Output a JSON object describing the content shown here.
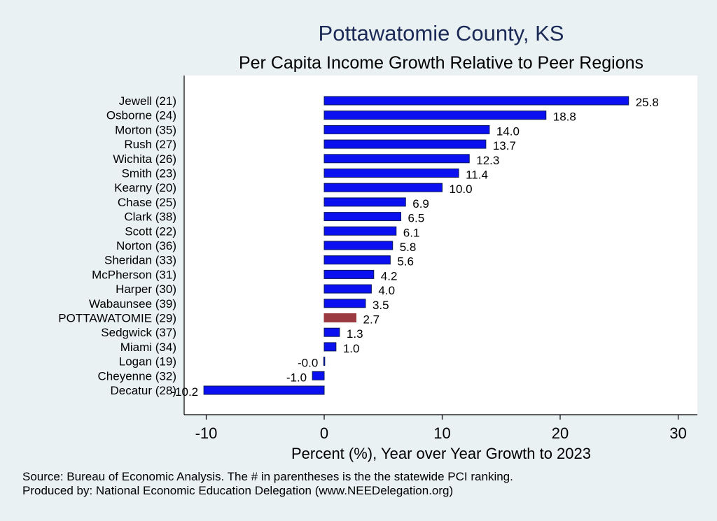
{
  "colors": {
    "bar": "#0a10f0",
    "bar_stroke": "#0b1a5a",
    "highlight": "#9b3a40",
    "plot_bg": "#ffffff",
    "page_bg": "#eaf1f3",
    "title": "#1b2a56"
  },
  "chart_data": {
    "type": "bar",
    "orientation": "horizontal",
    "title": "Pottawatomie County, KS",
    "subtitle": "Per Capita Income Growth Relative to Peer Regions",
    "xlabel": "Percent (%), Year over Year Growth to 2023",
    "ylabel": "",
    "xlim": [
      -12,
      31.5
    ],
    "xticks": [
      -10,
      0,
      10,
      20,
      30
    ],
    "xtick_labels": [
      "-10",
      "0",
      "10",
      "20",
      "30"
    ],
    "highlight_category": "POTTAWATOMIE (29)",
    "categories": [
      "Jewell (21)",
      "Osborne (24)",
      "Morton (35)",
      "Rush (27)",
      "Wichita (26)",
      "Smith (23)",
      "Kearny (20)",
      "Chase (25)",
      "Clark (38)",
      "Scott (22)",
      "Norton (36)",
      "Sheridan (33)",
      "McPherson (31)",
      "Harper (30)",
      "Wabaunsee (39)",
      "POTTAWATOMIE (29)",
      "Sedgwick (37)",
      "Miami (34)",
      "Logan (19)",
      "Cheyenne (32)",
      "Decatur (28)"
    ],
    "values": [
      25.8,
      18.8,
      14.0,
      13.7,
      12.3,
      11.4,
      10.0,
      6.9,
      6.5,
      6.1,
      5.8,
      5.6,
      4.2,
      4.0,
      3.5,
      2.7,
      1.3,
      1.0,
      -0.04,
      -1.0,
      -10.2
    ],
    "value_labels": [
      "25.8",
      "18.8",
      "14.0",
      "13.7",
      "12.3",
      "11.4",
      "10.0",
      "6.9",
      "6.5",
      "6.1",
      "5.8",
      "5.6",
      "4.2",
      "4.0",
      "3.5",
      "2.7",
      "1.3",
      "1.0",
      "-0.0",
      "-1.0",
      "-10.2"
    ]
  },
  "footer": {
    "source": "Source: Bureau of Economic Analysis. The # in parentheses is the the statewide PCI ranking.",
    "produced_by": "Produced by: National Economic Education Delegation (www.NEEDelegation.org)"
  }
}
